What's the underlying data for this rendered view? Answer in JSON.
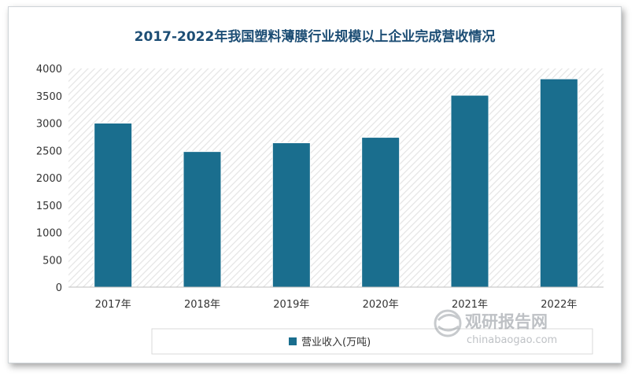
{
  "chart_data": {
    "type": "bar",
    "title": "2017-2022年我国塑料薄膜行业规模以上企业完成营收情况",
    "categories": [
      "2017年",
      "2018年",
      "2019年",
      "2020年",
      "2021年",
      "2022年"
    ],
    "series": [
      {
        "name": "营业收入(万吨)",
        "values": [
          3000,
          2480,
          2640,
          2740,
          3510,
          3810
        ]
      }
    ],
    "ylim": [
      0,
      4000
    ],
    "yticks": [
      0,
      500,
      1000,
      1500,
      2000,
      2500,
      3000,
      3500,
      4000
    ],
    "grid": false,
    "legend_position": "bottom",
    "colors": {
      "bar": "#1a6e8e",
      "title": "#1d4e75",
      "plot_hatch": "#e4e4e4"
    }
  },
  "watermark": {
    "name": "观研报告网",
    "url": "chinabaogao.com"
  }
}
